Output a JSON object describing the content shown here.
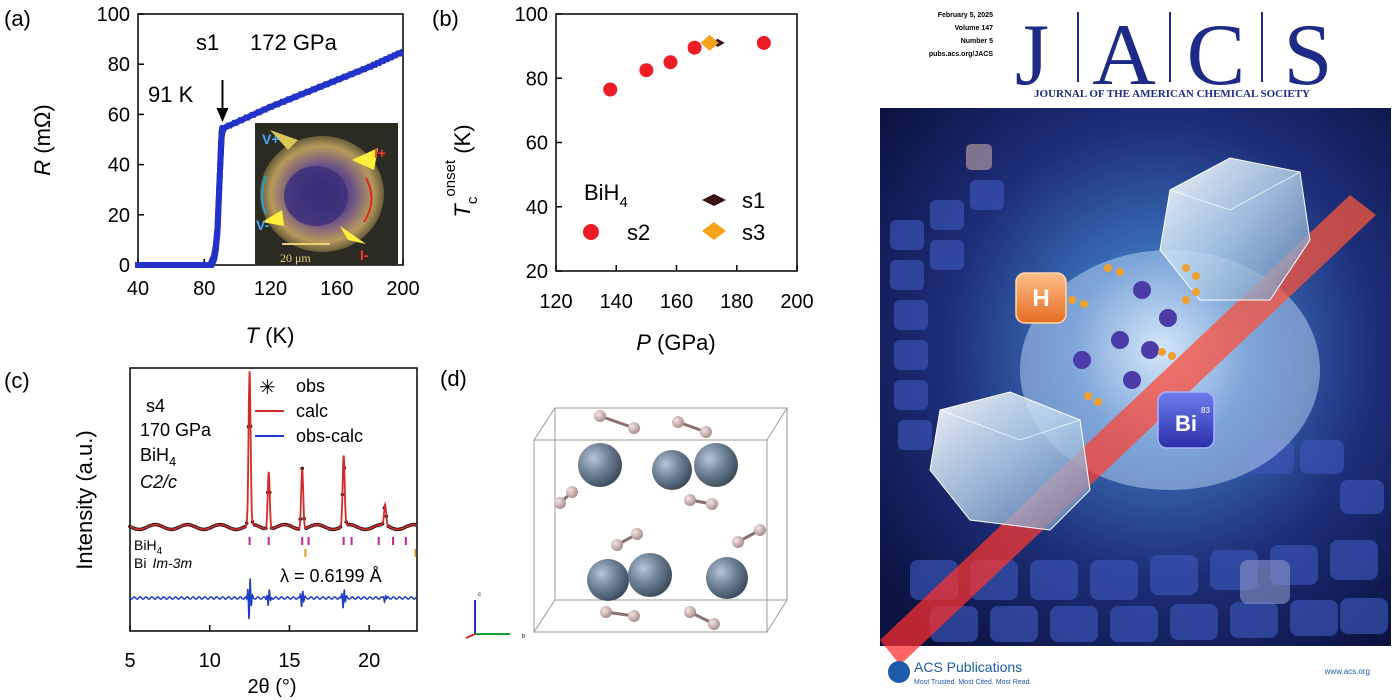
{
  "panels": {
    "a": {
      "label": "(a)"
    },
    "b": {
      "label": "(b)"
    },
    "c": {
      "label": "(c)"
    },
    "d": {
      "label": "(d)"
    }
  },
  "chart_data": [
    {
      "panel": "a",
      "type": "line",
      "xlabel_sym": "T",
      "xlabel_unit": " (K)",
      "ylabel_sym": "R",
      "ylabel_unit": " (mΩ)",
      "xlim": [
        40,
        200
      ],
      "ylim": [
        0,
        100
      ],
      "xticks": [
        40,
        80,
        120,
        160,
        200
      ],
      "yticks": [
        0,
        20,
        40,
        60,
        80,
        100
      ],
      "series": [
        {
          "name": "s1",
          "x": [
            40,
            60,
            70,
            80,
            84,
            86,
            87,
            88,
            89,
            90,
            90.5,
            91,
            91.5,
            120,
            150,
            180,
            200
          ],
          "y": [
            0,
            0,
            0,
            0,
            0,
            3,
            7,
            14,
            30,
            45,
            52,
            54,
            54.5,
            63,
            71,
            79,
            85
          ]
        }
      ],
      "annotations": {
        "sample": "s1",
        "pressure": "172 GPa",
        "tc_label": "91 K",
        "tc_value": 91
      },
      "inset": {
        "labels": [
          "V+",
          "I+",
          "V-",
          "I-"
        ],
        "scale_bar": "20 μm"
      }
    },
    {
      "panel": "b",
      "type": "scatter",
      "xlabel_sym": "P",
      "xlabel_unit": " (GPa)",
      "ylabel_sym": "T",
      "ylabel_sub": "c",
      "ylabel_sup": "onset",
      "ylabel_unit": " (K)",
      "xlim": [
        120,
        200
      ],
      "ylim": [
        20,
        100
      ],
      "xticks": [
        120,
        140,
        160,
        180,
        200
      ],
      "yticks": [
        20,
        40,
        60,
        80,
        100
      ],
      "series": [
        {
          "name": "s2",
          "marker": "circle",
          "color": "#ee1c24",
          "x": [
            138,
            150,
            158,
            166,
            189
          ],
          "y": [
            76.5,
            82.5,
            85,
            89.5,
            91
          ]
        },
        {
          "name": "s1",
          "marker": "diamond",
          "color": "#3a1014",
          "x": [
            172
          ],
          "y": [
            91
          ]
        },
        {
          "name": "s3",
          "marker": "diamond",
          "color": "#f5a31a",
          "x": [
            171
          ],
          "y": [
            91
          ]
        }
      ],
      "legend_title": "BiH4"
    },
    {
      "panel": "c",
      "type": "line",
      "xlabel": "2θ (°)",
      "ylabel": "Intensity (a.u.)",
      "xlim": [
        5,
        23
      ],
      "xticks": [
        5,
        10,
        15,
        20
      ],
      "annotations": {
        "sample": "s4",
        "pressure": "170 GPa",
        "phase": "BiH4",
        "space_group": "C2/c",
        "wavelength": "λ = 0.6199 Å",
        "tick_label_1": "BiH4",
        "tick_label_2_elem": "Bi",
        "tick_label_2_sg": "Im-3m"
      },
      "legend": [
        "obs",
        "calc",
        "obs-calc"
      ],
      "peaks": [
        12.5,
        13.7,
        15.8,
        18.4,
        21.0
      ],
      "peak_heights": [
        96,
        36,
        38,
        44,
        13
      ],
      "bih4_ticks": [
        12.5,
        13.7,
        15.8,
        16.2,
        18.4,
        18.9,
        20.6,
        21.5,
        22.3
      ],
      "bi_ticks": [
        16.0,
        22.9
      ]
    }
  ],
  "structure": {
    "axes_labels": [
      "c",
      "b"
    ]
  },
  "cover": {
    "date": "February 5, 2025",
    "volume": "Volume 147",
    "number": "Number 5",
    "url": "pubs.acs.org/JACS",
    "logo_letters": [
      "J",
      "A",
      "C",
      "S"
    ],
    "subtitle": "JOURNAL OF THE AMERICAN CHEMICAL SOCIETY",
    "tile_h": "H",
    "tile_bi": "Bi",
    "tile_bi_number": "83",
    "publisher": "ACS Publications",
    "tagline": "Most Trusted. Most Cited. Most Read.",
    "website": "www.acs.org"
  }
}
